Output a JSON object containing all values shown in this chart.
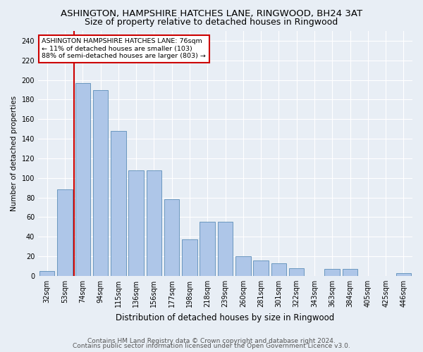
{
  "title": "ASHINGTON, HAMPSHIRE HATCHES LANE, RINGWOOD, BH24 3AT",
  "subtitle": "Size of property relative to detached houses in Ringwood",
  "xlabel": "Distribution of detached houses by size in Ringwood",
  "ylabel": "Number of detached properties",
  "categories": [
    "32sqm",
    "53sqm",
    "74sqm",
    "94sqm",
    "115sqm",
    "136sqm",
    "156sqm",
    "177sqm",
    "198sqm",
    "218sqm",
    "239sqm",
    "260sqm",
    "281sqm",
    "301sqm",
    "322sqm",
    "343sqm",
    "363sqm",
    "384sqm",
    "405sqm",
    "425sqm",
    "446sqm"
  ],
  "values": [
    5,
    88,
    197,
    190,
    148,
    108,
    108,
    78,
    37,
    55,
    55,
    20,
    16,
    13,
    8,
    0,
    7,
    7,
    0,
    0,
    3
  ],
  "bar_color": "#aec6e8",
  "bar_edge_color": "#5b8db8",
  "vline_color": "#cc0000",
  "annotation_text": "ASHINGTON HAMPSHIRE HATCHES LANE: 76sqm\n← 11% of detached houses are smaller (103)\n88% of semi-detached houses are larger (803) →",
  "annotation_box_color": "#ffffff",
  "annotation_box_edge": "#cc0000",
  "ylim": [
    0,
    250
  ],
  "yticks": [
    0,
    20,
    40,
    60,
    80,
    100,
    120,
    140,
    160,
    180,
    200,
    220,
    240
  ],
  "footer1": "Contains HM Land Registry data © Crown copyright and database right 2024.",
  "footer2": "Contains public sector information licensed under the Open Government Licence v3.0.",
  "bg_color": "#e8eef5",
  "plot_bg_color": "#e8eef5",
  "grid_color": "#ffffff",
  "title_fontsize": 9.5,
  "subtitle_fontsize": 9,
  "xlabel_fontsize": 8.5,
  "ylabel_fontsize": 7.5,
  "tick_fontsize": 7,
  "footer_fontsize": 6.5
}
